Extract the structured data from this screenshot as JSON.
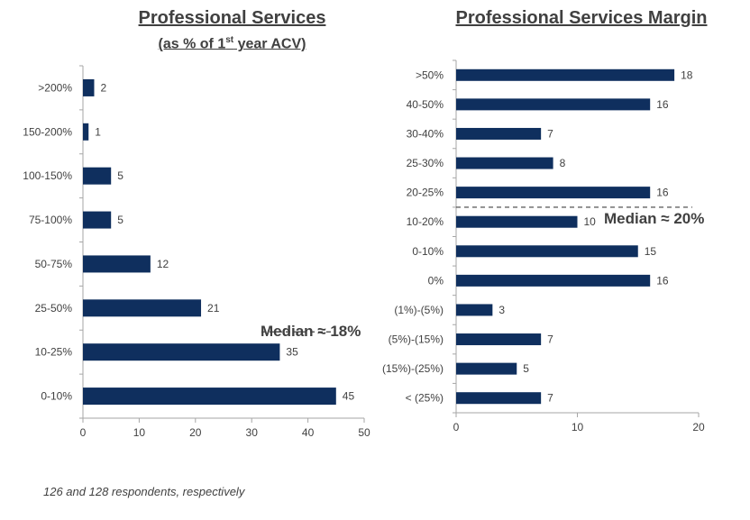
{
  "titles": {
    "left_main": "Professional  Services",
    "left_sub_pre": "(as % of 1",
    "left_sub_sup": "st",
    "left_sub_post": " year ACV)",
    "right_main": "Professional  Services Margin"
  },
  "footnote": "126 and 128 respondents, respectively",
  "colors": {
    "bar": "#0f2f5e",
    "axis": "#a6a6a6",
    "text": "#404040"
  },
  "chart_data": [
    {
      "type": "bar",
      "orientation": "horizontal",
      "title": "Professional  Services (as % of 1st year ACV)",
      "categories": [
        ">200%",
        "150-200%",
        "100-150%",
        "75-100%",
        "50-75%",
        "25-50%",
        "10-25%",
        "0-10%"
      ],
      "values": [
        2,
        1,
        5,
        5,
        12,
        21,
        35,
        45
      ],
      "xlim": [
        0,
        50
      ],
      "xticks": [
        0,
        10,
        20,
        30,
        40,
        50
      ],
      "grid": false,
      "median_label": "Median ≈ 18%",
      "median_between": [
        "25-50%",
        "10-25%"
      ]
    },
    {
      "type": "bar",
      "orientation": "horizontal",
      "title": "Professional  Services Margin",
      "categories": [
        ">50%",
        "40-50%",
        "30-40%",
        "25-30%",
        "20-25%",
        "10-20%",
        "0-10%",
        "0%",
        "(1%)-(5%)",
        "(5%)-(15%)",
        "(15%)-(25%)",
        "< (25%)"
      ],
      "values": [
        18,
        16,
        7,
        8,
        16,
        10,
        15,
        16,
        3,
        7,
        5,
        7
      ],
      "xlim": [
        0,
        20
      ],
      "xticks": [
        0,
        10,
        20
      ],
      "grid": false,
      "median_label": "Median ≈ 20%",
      "median_between": [
        "20-25%",
        "10-20%"
      ]
    }
  ]
}
